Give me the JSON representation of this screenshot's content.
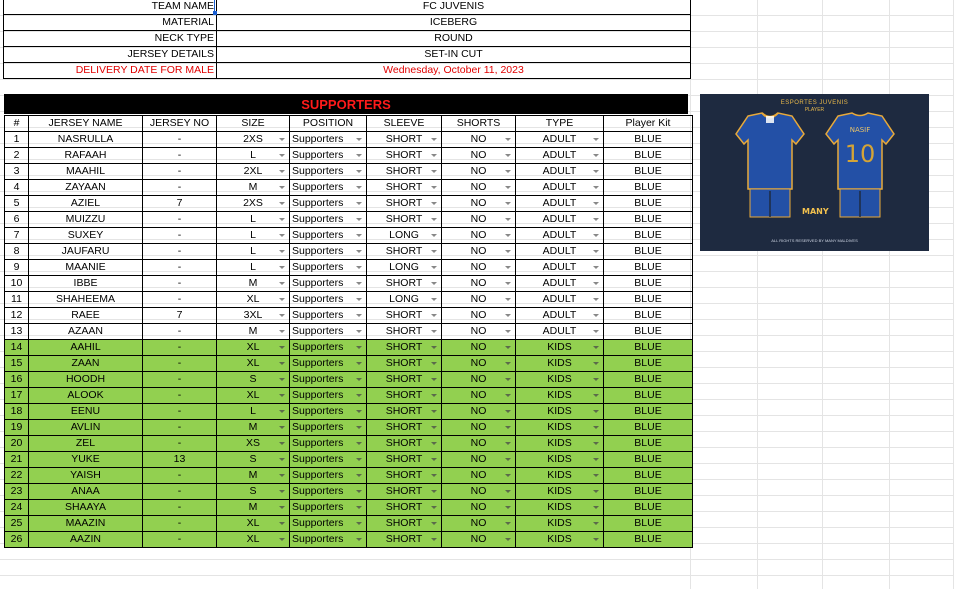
{
  "header": {
    "rows": [
      {
        "label": "TEAM NAME",
        "value": "FC JUVENIS"
      },
      {
        "label": "MATERIAL",
        "value": "ICEBERG"
      },
      {
        "label": "NECK TYPE",
        "value": "ROUND"
      },
      {
        "label": "JERSEY DETAILS",
        "value": "SET-IN CUT"
      },
      {
        "label": "DELIVERY DATE FOR MALE",
        "value": "Wednesday, October 11, 2023"
      }
    ]
  },
  "table": {
    "title": "SUPPORTERS",
    "columns": [
      "#",
      "JERSEY NAME",
      "JERSEY NO",
      "SIZE",
      "POSITION",
      "SLEEVE",
      "SHORTS",
      "TYPE",
      "Player Kit"
    ],
    "rows": [
      [
        "1",
        "NASRULLA",
        "-",
        "2XS",
        "Supporters",
        "SHORT",
        "NO",
        "ADULT",
        "BLUE"
      ],
      [
        "2",
        "RAFAAH",
        "-",
        "L",
        "Supporters",
        "SHORT",
        "NO",
        "ADULT",
        "BLUE"
      ],
      [
        "3",
        "MAAHIL",
        "-",
        "2XL",
        "Supporters",
        "SHORT",
        "NO",
        "ADULT",
        "BLUE"
      ],
      [
        "4",
        "ZAYAAN",
        "-",
        "M",
        "Supporters",
        "SHORT",
        "NO",
        "ADULT",
        "BLUE"
      ],
      [
        "5",
        "AZIEL",
        "7",
        "2XS",
        "Supporters",
        "SHORT",
        "NO",
        "ADULT",
        "BLUE"
      ],
      [
        "6",
        "MUIZZU",
        "-",
        "L",
        "Supporters",
        "SHORT",
        "NO",
        "ADULT",
        "BLUE"
      ],
      [
        "7",
        "SUXEY",
        "-",
        "L",
        "Supporters",
        "LONG",
        "NO",
        "ADULT",
        "BLUE"
      ],
      [
        "8",
        "JAUFARU",
        "-",
        "L",
        "Supporters",
        "SHORT",
        "NO",
        "ADULT",
        "BLUE"
      ],
      [
        "9",
        "MAANIE",
        "-",
        "L",
        "Supporters",
        "LONG",
        "NO",
        "ADULT",
        "BLUE"
      ],
      [
        "10",
        "IBBE",
        "-",
        "M",
        "Supporters",
        "SHORT",
        "NO",
        "ADULT",
        "BLUE"
      ],
      [
        "11",
        "SHAHEEMA",
        "-",
        "XL",
        "Supporters",
        "LONG",
        "NO",
        "ADULT",
        "BLUE"
      ],
      [
        "12",
        "RAEE",
        "7",
        "3XL",
        "Supporters",
        "SHORT",
        "NO",
        "ADULT",
        "BLUE"
      ],
      [
        "13",
        "AZAAN",
        "-",
        "M",
        "Supporters",
        "SHORT",
        "NO",
        "ADULT",
        "BLUE"
      ],
      [
        "14",
        "AAHIL",
        "-",
        "XL",
        "Supporters",
        "SHORT",
        "NO",
        "KIDS",
        "BLUE"
      ],
      [
        "15",
        "ZAAN",
        "-",
        "XL",
        "Supporters",
        "SHORT",
        "NO",
        "KIDS",
        "BLUE"
      ],
      [
        "16",
        "HOODH",
        "-",
        "S",
        "Supporters",
        "SHORT",
        "NO",
        "KIDS",
        "BLUE"
      ],
      [
        "17",
        "ALOOK",
        "-",
        "XL",
        "Supporters",
        "SHORT",
        "NO",
        "KIDS",
        "BLUE"
      ],
      [
        "18",
        "EENU",
        "-",
        "L",
        "Supporters",
        "SHORT",
        "NO",
        "KIDS",
        "BLUE"
      ],
      [
        "19",
        "AVLIN",
        "-",
        "M",
        "Supporters",
        "SHORT",
        "NO",
        "KIDS",
        "BLUE"
      ],
      [
        "20",
        "ZEL",
        "-",
        "XS",
        "Supporters",
        "SHORT",
        "NO",
        "KIDS",
        "BLUE"
      ],
      [
        "21",
        "YUKE",
        "13",
        "S",
        "Supporters",
        "SHORT",
        "NO",
        "KIDS",
        "BLUE"
      ],
      [
        "22",
        "YAISH",
        "-",
        "M",
        "Supporters",
        "SHORT",
        "NO",
        "KIDS",
        "BLUE"
      ],
      [
        "23",
        "ANAA",
        "-",
        "S",
        "Supporters",
        "SHORT",
        "NO",
        "KIDS",
        "BLUE"
      ],
      [
        "24",
        "SHAAYA",
        "-",
        "M",
        "Supporters",
        "SHORT",
        "NO",
        "KIDS",
        "BLUE"
      ],
      [
        "25",
        "MAAZIN",
        "-",
        "XL",
        "Supporters",
        "SHORT",
        "NO",
        "KIDS",
        "BLUE"
      ],
      [
        "26",
        "AAZIN",
        "-",
        "XL",
        "Supporters",
        "SHORT",
        "NO",
        "KIDS",
        "BLUE"
      ]
    ]
  },
  "kit_image": {
    "top_title": "ESPORTES JUVENIS",
    "subtitle": "PLAYER",
    "player_name": "NASIF",
    "player_number": "10",
    "brand": "MANY",
    "footer": "ALL RIGHTS RESERVED BY MANY MALDIVES"
  },
  "colors": {
    "kids_row": "#92d050",
    "title_bar_bg": "#000000",
    "title_text": "#ff1a1a",
    "delivery_text": "#e00000",
    "jersey_blue": "#2350a6",
    "trim_gold": "#e8a93a"
  }
}
